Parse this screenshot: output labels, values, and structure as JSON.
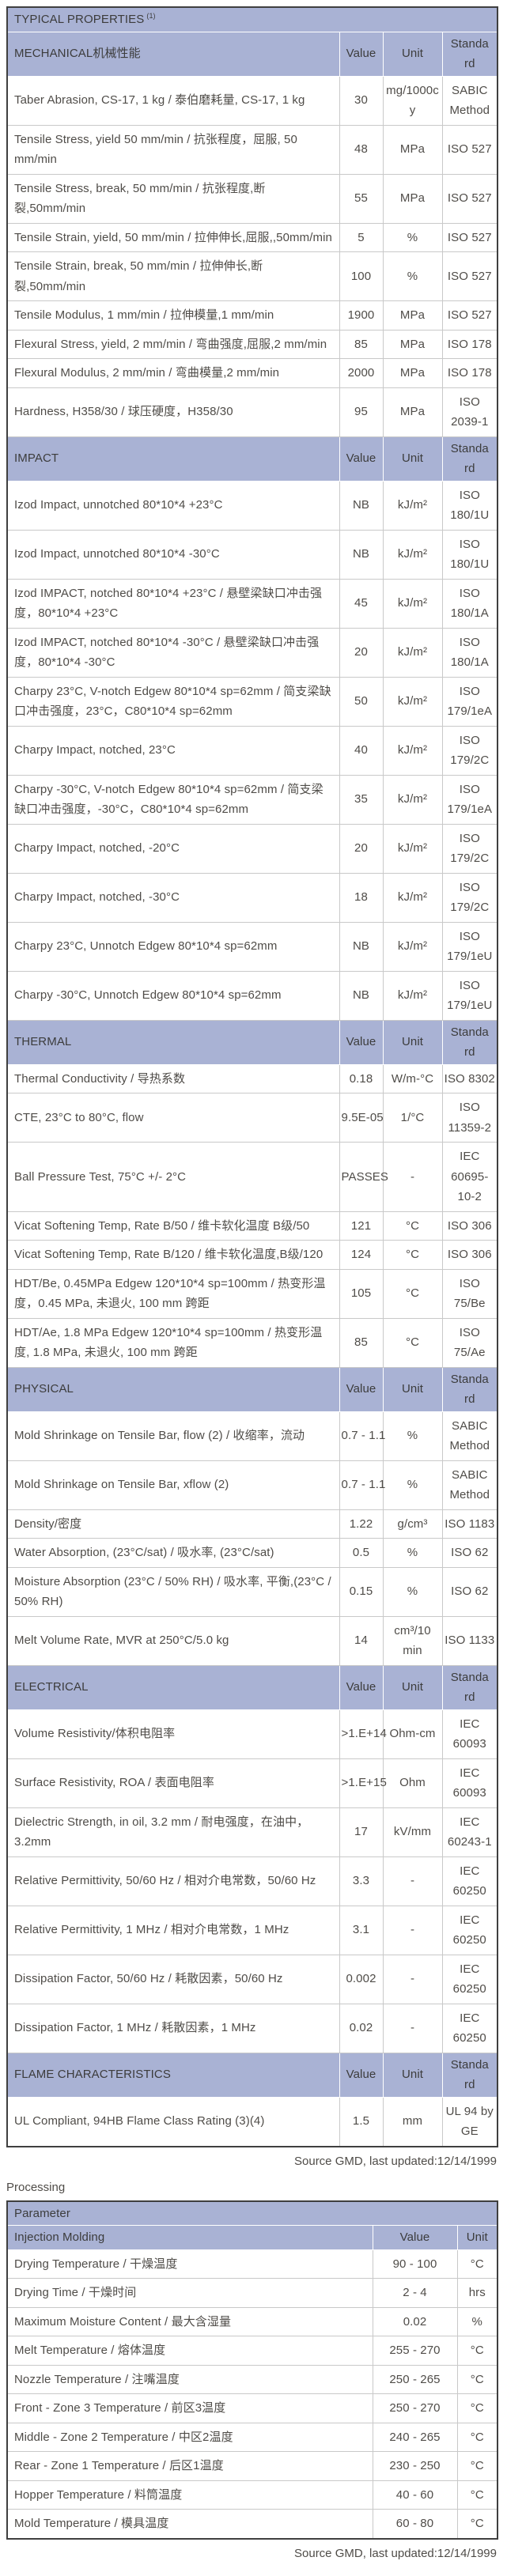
{
  "colors": {
    "header_bg": "#a9b2d4",
    "header_text": "#3c3c3c",
    "text": "#4f4c48",
    "border_dark": "#3f3f3f",
    "border_light": "#c9c9c9"
  },
  "footer": {
    "source_note": "Source GMD, last updated:12/14/1999"
  },
  "properties_table": {
    "title": "TYPICAL PROPERTIES",
    "title_note": "(1)",
    "col_headers": {
      "value": "Value",
      "unit": "Unit",
      "standard": "Standard"
    },
    "sections": [
      {
        "name": "MECHANICAL机械性能",
        "rows": [
          {
            "property": "Taber Abrasion, CS-17, 1 kg / 泰伯磨耗量, CS-17, 1 kg",
            "value": "30",
            "unit": "mg/1000cy",
            "standard": "SABIC Method"
          },
          {
            "property": "Tensile Stress, yield 50 mm/min / 抗张程度，屈服, 50 mm/min",
            "value": "48",
            "unit": "MPa",
            "standard": "ISO 527"
          },
          {
            "property": "Tensile Stress, break, 50 mm/min / 抗张程度,断裂,50mm/min",
            "value": "55",
            "unit": "MPa",
            "standard": "ISO 527"
          },
          {
            "property": "Tensile Strain, yield, 50 mm/min / 拉伸伸长,屈服,,50mm/min",
            "value": "5",
            "unit": "%",
            "standard": "ISO 527"
          },
          {
            "property": "Tensile Strain, break, 50 mm/min / 拉伸伸长,断裂,50mm/min",
            "value": "100",
            "unit": "%",
            "standard": "ISO 527"
          },
          {
            "property": "Tensile Modulus, 1 mm/min / 拉伸模量,1 mm/min",
            "value": "1900",
            "unit": "MPa",
            "standard": "ISO 527"
          },
          {
            "property": "Flexural Stress, yield, 2 mm/min / 弯曲强度,屈服,2 mm/min",
            "value": "85",
            "unit": "MPa",
            "standard": "ISO 178"
          },
          {
            "property": "Flexural Modulus, 2 mm/min / 弯曲模量,2 mm/min",
            "value": "2000",
            "unit": "MPa",
            "standard": "ISO 178"
          },
          {
            "property": "Hardness, H358/30 / 球压硬度，H358/30",
            "value": "95",
            "unit": "MPa",
            "standard": "ISO 2039-1"
          }
        ]
      },
      {
        "name": "IMPACT",
        "rows": [
          {
            "property": "Izod Impact, unnotched 80*10*4 +23°C",
            "value": "NB",
            "unit": "kJ/m²",
            "standard": "ISO 180/1U"
          },
          {
            "property": "Izod Impact, unnotched 80*10*4 -30°C",
            "value": "NB",
            "unit": "kJ/m²",
            "standard": "ISO 180/1U"
          },
          {
            "property": "Izod IMPACT, notched 80*10*4 +23°C / 悬壁梁缺口冲击强度，80*10*4 +23°C",
            "value": "45",
            "unit": "kJ/m²",
            "standard": "ISO 180/1A"
          },
          {
            "property": "Izod IMPACT, notched 80*10*4 -30°C / 悬壁梁缺口冲击强度，80*10*4 -30°C",
            "value": "20",
            "unit": "kJ/m²",
            "standard": "ISO 180/1A"
          },
          {
            "property": "Charpy 23°C, V-notch Edgew 80*10*4 sp=62mm / 简支梁缺口冲击强度，23°C，C80*10*4 sp=62mm",
            "value": "50",
            "unit": "kJ/m²",
            "standard": "ISO 179/1eA"
          },
          {
            "property": "Charpy Impact, notched, 23°C",
            "value": "40",
            "unit": "kJ/m²",
            "standard": "ISO 179/2C"
          },
          {
            "property": "Charpy -30°C, V-notch Edgew 80*10*4 sp=62mm / 简支梁缺口冲击强度，-30°C，C80*10*4 sp=62mm",
            "value": "35",
            "unit": "kJ/m²",
            "standard": "ISO 179/1eA"
          },
          {
            "property": "Charpy Impact, notched, -20°C",
            "value": "20",
            "unit": "kJ/m²",
            "standard": "ISO 179/2C"
          },
          {
            "property": "Charpy Impact, notched, -30°C",
            "value": "18",
            "unit": "kJ/m²",
            "standard": "ISO 179/2C"
          },
          {
            "property": "Charpy 23°C, Unnotch Edgew 80*10*4 sp=62mm",
            "value": "NB",
            "unit": "kJ/m²",
            "standard": "ISO 179/1eU"
          },
          {
            "property": "Charpy -30°C, Unnotch Edgew 80*10*4 sp=62mm",
            "value": "NB",
            "unit": "kJ/m²",
            "standard": "ISO 179/1eU"
          }
        ]
      },
      {
        "name": "THERMAL",
        "rows": [
          {
            "property": "Thermal Conductivity / 导热系数",
            "value": "0.18",
            "unit": "W/m-°C",
            "standard": "ISO 8302"
          },
          {
            "property": "CTE, 23°C to 80°C, flow",
            "value": "9.5E-05",
            "unit": "1/°C",
            "standard": "ISO 11359-2"
          },
          {
            "property": "Ball Pressure Test, 75°C +/- 2°C",
            "value": "PASSES",
            "unit": "-",
            "standard": "IEC 60695-10-2"
          },
          {
            "property": "Vicat Softening Temp, Rate B/50 / 维卡软化温度 B级/50",
            "value": "121",
            "unit": "°C",
            "standard": "ISO 306"
          },
          {
            "property": "Vicat Softening Temp, Rate B/120 / 维卡软化温度,B级/120",
            "value": "124",
            "unit": "°C",
            "standard": "ISO 306"
          },
          {
            "property": "HDT/Be, 0.45MPa Edgew 120*10*4 sp=100mm / 热变形温度，0.45 MPa, 未退火, 100 mm 跨距",
            "value": "105",
            "unit": "°C",
            "standard": "ISO 75/Be"
          },
          {
            "property": "HDT/Ae, 1.8 MPa Edgew 120*10*4 sp=100mm / 热变形温度, 1.8 MPa, 未退火, 100 mm 跨距",
            "value": "85",
            "unit": "°C",
            "standard": "ISO 75/Ae"
          }
        ]
      },
      {
        "name": "PHYSICAL",
        "rows": [
          {
            "property": "Mold Shrinkage on Tensile Bar, flow (2) / 收缩率，流动",
            "value": "0.7 - 1.1",
            "unit": "%",
            "standard": "SABIC Method"
          },
          {
            "property": "Mold Shrinkage on Tensile Bar, xflow (2)",
            "value": "0.7 - 1.1",
            "unit": "%",
            "standard": "SABIC Method"
          },
          {
            "property": "Density/密度",
            "value": "1.22",
            "unit": "g/cm³",
            "standard": "ISO 1183"
          },
          {
            "property": "Water Absorption, (23°C/sat) / 吸水率, (23°C/sat)",
            "value": "0.5",
            "unit": "%",
            "standard": "ISO 62"
          },
          {
            "property": "Moisture Absorption (23°C / 50% RH) / 吸水率, 平衡,(23°C / 50% RH)",
            "value": "0.15",
            "unit": "%",
            "standard": "ISO 62"
          },
          {
            "property": "Melt Volume Rate, MVR at 250°C/5.0 kg",
            "value": "14",
            "unit": "cm³/10 min",
            "standard": "ISO 1133"
          }
        ]
      },
      {
        "name": "ELECTRICAL",
        "rows": [
          {
            "property": "Volume Resistivity/体积电阻率",
            "value": ">1.E+14",
            "unit": "Ohm-cm",
            "standard": "IEC 60093"
          },
          {
            "property": "Surface Resistivity, ROA / 表面电阻率",
            "value": ">1.E+15",
            "unit": "Ohm",
            "standard": "IEC 60093"
          },
          {
            "property": "Dielectric Strength, in oil, 3.2 mm / 耐电强度，在油中，3.2mm",
            "value": "17",
            "unit": "kV/mm",
            "standard": "IEC 60243-1"
          },
          {
            "property": "Relative Permittivity, 50/60 Hz / 相对介电常数，50/60 Hz",
            "value": "3.3",
            "unit": "-",
            "standard": "IEC 60250"
          },
          {
            "property": "Relative Permittivity, 1 MHz / 相对介电常数，1 MHz",
            "value": "3.1",
            "unit": "-",
            "standard": "IEC 60250"
          },
          {
            "property": "Dissipation Factor, 50/60 Hz / 耗散因素，50/60 Hz",
            "value": "0.002",
            "unit": "-",
            "standard": "IEC 60250"
          },
          {
            "property": "Dissipation Factor, 1 MHz / 耗散因素，1 MHz",
            "value": "0.02",
            "unit": "-",
            "standard": "IEC 60250"
          }
        ]
      },
      {
        "name": "FLAME CHARACTERISTICS",
        "rows": [
          {
            "property": "UL Compliant, 94HB Flame Class Rating (3)(4)",
            "value": "1.5",
            "unit": "mm",
            "standard": "UL 94 by GE"
          }
        ]
      }
    ]
  },
  "processing_table": {
    "heading": "Processing",
    "param_header": "Parameter",
    "group_header": "Injection Molding",
    "col_headers": {
      "value": "Value",
      "unit": "Unit"
    },
    "rows": [
      {
        "parameter": "Drying Temperature / 干燥温度",
        "value": "90 - 100",
        "unit": "°C"
      },
      {
        "parameter": "Drying Time / 干燥时间",
        "value": "2 - 4",
        "unit": "hrs"
      },
      {
        "parameter": "Maximum Moisture Content / 最大含湿量",
        "value": "0.02",
        "unit": "%"
      },
      {
        "parameter": "Melt Temperature / 熔体温度",
        "value": "255 - 270",
        "unit": "°C"
      },
      {
        "parameter": "Nozzle Temperature / 注嘴温度",
        "value": "250 - 265",
        "unit": "°C"
      },
      {
        "parameter": "Front - Zone 3 Temperature / 前区3温度",
        "value": "250 - 270",
        "unit": "°C"
      },
      {
        "parameter": "Middle - Zone 2 Temperature / 中区2温度",
        "value": "240 - 265",
        "unit": "°C"
      },
      {
        "parameter": "Rear - Zone 1 Temperature / 后区1温度",
        "value": "230 - 250",
        "unit": "°C"
      },
      {
        "parameter": "Hopper Temperature / 料筒温度",
        "value": "40 - 60",
        "unit": "°C"
      },
      {
        "parameter": "Mold Temperature / 模具温度",
        "value": "60 - 80",
        "unit": "°C"
      }
    ]
  }
}
